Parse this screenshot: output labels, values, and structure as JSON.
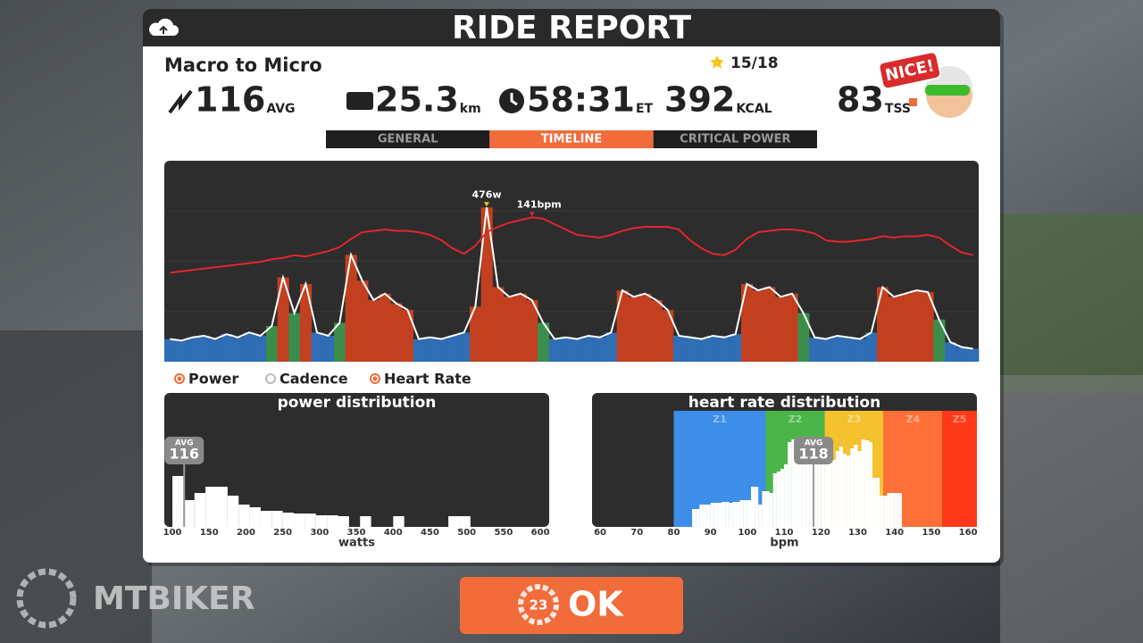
{
  "header": {
    "title": "RIDE REPORT"
  },
  "summary": {
    "route": "Macro to Micro",
    "stars": "15/18",
    "badge": "NICE!",
    "stats": [
      {
        "value": 116,
        "unit": "AVG"
      },
      {
        "value": 25.3,
        "unit": "km"
      },
      {
        "value": "58:31",
        "unit": "ET"
      },
      {
        "value": 392,
        "unit": "KCAL"
      },
      {
        "value": 83,
        "unit": "TSS"
      }
    ]
  },
  "tabs": [
    {
      "label": "GENERAL",
      "active": false
    },
    {
      "label": "TIMELINE",
      "active": true
    },
    {
      "label": "CRITICAL POWER",
      "active": false
    }
  ],
  "chart_data": [
    {
      "type": "timeline",
      "ylim": [
        0,
        620
      ],
      "y2lim": [
        34,
        183
      ],
      "legend": [
        {
          "name": "Power",
          "active": true
        },
        {
          "name": "Cadence",
          "active": false
        },
        {
          "name": "Heart Rate",
          "active": true
        }
      ],
      "series": [
        {
          "name": "Power",
          "color": "#ffffff",
          "peak_label": "476w",
          "values": [
            70,
            65,
            75,
            80,
            70,
            85,
            75,
            90,
            80,
            110,
            260,
            150,
            240,
            90,
            80,
            120,
            330,
            250,
            190,
            210,
            180,
            160,
            70,
            75,
            70,
            80,
            90,
            170,
            476,
            230,
            200,
            210,
            190,
            120,
            70,
            75,
            70,
            80,
            75,
            90,
            220,
            200,
            210,
            190,
            160,
            80,
            75,
            70,
            80,
            75,
            85,
            240,
            220,
            230,
            200,
            210,
            150,
            75,
            70,
            80,
            75,
            70,
            90,
            230,
            200,
            210,
            220,
            215,
            130,
            60,
            45,
            40
          ],
          "bar_colors": [
            "#2f6db5",
            "#2f6db5",
            "#2f6db5",
            "#2f6db5",
            "#2f6db5",
            "#2f6db5",
            "#2f6db5",
            "#2f6db5",
            "#2f6db5",
            "#3c8d4b",
            "#c2401f",
            "#3c8d4b",
            "#c2401f",
            "#2f6db5",
            "#2f6db5",
            "#3c8d4b",
            "#c2401f",
            "#c2401f",
            "#c2401f",
            "#c2401f",
            "#c2401f",
            "#c2401f",
            "#2f6db5",
            "#2f6db5",
            "#2f6db5",
            "#2f6db5",
            "#2f6db5",
            "#c2401f",
            "#c2401f",
            "#c2401f",
            "#c2401f",
            "#c2401f",
            "#c2401f",
            "#3c8d4b",
            "#2f6db5",
            "#2f6db5",
            "#2f6db5",
            "#2f6db5",
            "#2f6db5",
            "#2f6db5",
            "#c2401f",
            "#c2401f",
            "#c2401f",
            "#c2401f",
            "#c2401f",
            "#2f6db5",
            "#2f6db5",
            "#2f6db5",
            "#2f6db5",
            "#2f6db5",
            "#2f6db5",
            "#c2401f",
            "#c2401f",
            "#c2401f",
            "#c2401f",
            "#c2401f",
            "#3c8d4b",
            "#2f6db5",
            "#2f6db5",
            "#2f6db5",
            "#2f6db5",
            "#2f6db5",
            "#2f6db5",
            "#c2401f",
            "#c2401f",
            "#c2401f",
            "#c2401f",
            "#c2401f",
            "#3c8d4b",
            "#2f6db5",
            "#2f6db5",
            "#2f6db5"
          ]
        },
        {
          "name": "Heart Rate",
          "color": "#e3262b",
          "axis": "y2",
          "peak_label": "141bpm",
          "values": [
            100,
            101,
            102,
            103,
            104,
            105,
            106,
            107,
            108,
            110,
            111,
            113,
            112,
            114,
            116,
            119,
            125,
            130,
            131,
            132,
            131,
            131,
            130,
            128,
            124,
            118,
            114,
            120,
            130,
            134,
            137,
            139,
            141,
            140,
            136,
            132,
            128,
            127,
            126,
            128,
            131,
            133,
            134,
            134,
            134,
            132,
            124,
            118,
            114,
            113,
            117,
            125,
            130,
            131,
            132,
            132,
            131,
            129,
            124,
            123,
            123,
            124,
            125,
            127,
            126,
            127,
            127,
            128,
            126,
            120,
            115,
            113
          ]
        }
      ]
    },
    {
      "type": "histogram",
      "title": "power distribution",
      "x_label": "watts",
      "color": "#ffffff",
      "xlim": [
        89,
        612
      ],
      "ylim": [
        0,
        130
      ],
      "xticks": [
        100,
        150,
        200,
        250,
        300,
        350,
        400,
        450,
        500,
        550,
        600
      ],
      "bins": [
        100,
        115,
        130,
        145,
        160,
        175,
        190,
        205,
        220,
        235,
        250,
        265,
        280,
        295,
        310,
        325,
        340,
        355,
        370,
        385,
        400,
        415,
        430,
        445,
        460,
        475,
        490,
        505
      ],
      "values": [
        57,
        30,
        38,
        45,
        45,
        35,
        25,
        22,
        18,
        18,
        16,
        15,
        15,
        13,
        13,
        12,
        0,
        12,
        0,
        0,
        12,
        0,
        0,
        0,
        0,
        12,
        12
      ],
      "avg": 116,
      "avg_label": "AVG"
    },
    {
      "type": "histogram",
      "title": "heart rate distribution",
      "x_label": "bpm",
      "color": "#ffffff",
      "xlim": [
        57.8,
        162.4
      ],
      "ylim": [
        0,
        130
      ],
      "xticks": [
        60,
        70,
        80,
        90,
        100,
        110,
        120,
        130,
        140,
        150,
        160
      ],
      "zones": [
        {
          "name": "Z1",
          "from": 80,
          "to": 105,
          "color": "#3d8ee8"
        },
        {
          "name": "Z2",
          "from": 105,
          "to": 121,
          "color": "#4bb54a"
        },
        {
          "name": "Z3",
          "from": 121,
          "to": 137,
          "color": "#f3c22e"
        },
        {
          "name": "Z4",
          "from": 137,
          "to": 153,
          "color": "#ff7038"
        },
        {
          "name": "Z5",
          "from": 153,
          "to": 162.4,
          "color": "#ff3a1a"
        }
      ],
      "bins": [
        85,
        86,
        87,
        88,
        89,
        90,
        91,
        92,
        93,
        94,
        95,
        96,
        97,
        98,
        99,
        100,
        101,
        102,
        103,
        104,
        105,
        106,
        107,
        108,
        109,
        110,
        111,
        112,
        113,
        114,
        115,
        116,
        117,
        118,
        119,
        120,
        121,
        122,
        123,
        124,
        125,
        126,
        127,
        128,
        129,
        130,
        131,
        132,
        133,
        134,
        135,
        136,
        137,
        138,
        139,
        140,
        141,
        142
      ],
      "values": [
        20,
        20,
        25,
        25,
        25,
        27,
        27,
        27,
        28,
        28,
        27,
        28,
        28,
        30,
        30,
        30,
        45,
        45,
        25,
        40,
        40,
        38,
        60,
        62,
        65,
        70,
        95,
        98,
        95,
        85,
        80,
        82,
        78,
        75,
        72,
        80,
        85,
        78,
        75,
        85,
        90,
        82,
        80,
        88,
        92,
        85,
        98,
        97,
        95,
        55,
        55,
        35,
        35,
        38,
        38,
        38,
        38
      ],
      "avg": 118,
      "avg_label": "AVG"
    }
  ],
  "button": {
    "countdown": 23,
    "label": "OK"
  },
  "watermark": "MTBIKER"
}
